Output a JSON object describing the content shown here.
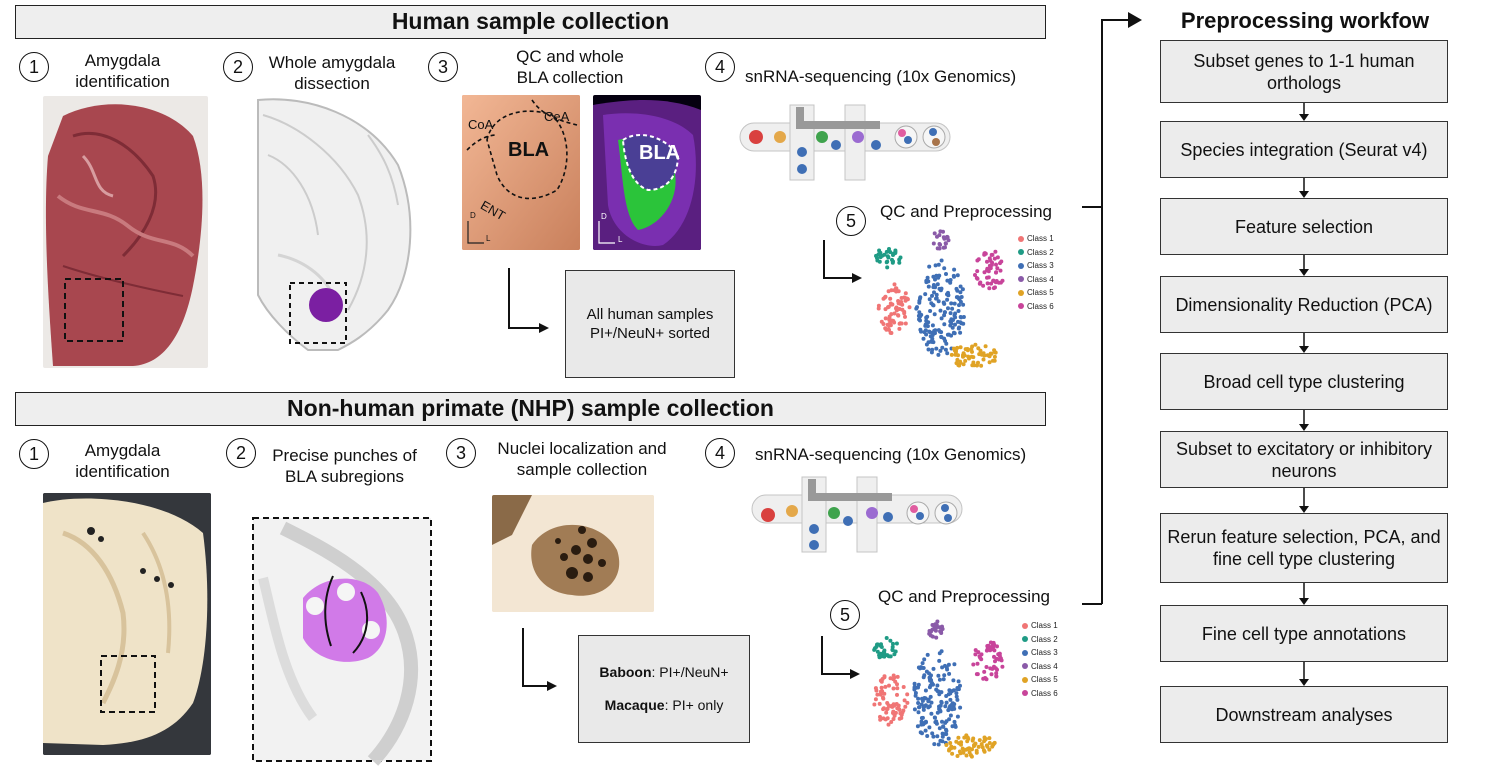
{
  "human": {
    "title": "Human sample collection",
    "steps": [
      {
        "num": "1",
        "label": "Amygdala identification"
      },
      {
        "num": "2",
        "label": "Whole amygdala dissection"
      },
      {
        "num": "3",
        "label": "QC and whole BLA collection"
      },
      {
        "num": "4",
        "label": "snRNA-sequencing (10x Genomics)"
      },
      {
        "num": "5",
        "label": "QC and Preprocessing"
      }
    ],
    "slice_labels": {
      "coa": "CoA",
      "cea": "CeA",
      "bla": "BLA",
      "ent": "ENT",
      "d": "D",
      "l": "L"
    },
    "fluor_labels": {
      "bla": "BLA",
      "d": "D",
      "l": "L"
    },
    "sort_box": [
      "All human samples",
      "PI+/NeuN+ sorted"
    ]
  },
  "nhp": {
    "title": "Non-human primate (NHP) sample collection",
    "steps": [
      {
        "num": "1",
        "label": "Amygdala identification"
      },
      {
        "num": "2",
        "label": "Precise punches of BLA subregions"
      },
      {
        "num": "3",
        "label": "Nuclei localization and sample collection"
      },
      {
        "num": "4",
        "label": "snRNA-sequencing (10x Genomics)"
      },
      {
        "num": "5",
        "label": "QC and Preprocessing"
      }
    ],
    "sort_box": {
      "baboon_name": "Baboon",
      "baboon_rest": ": PI+/NeuN+",
      "macaque_name": "Macaque",
      "macaque_rest": ": PI+ only"
    }
  },
  "legend": {
    "classes": [
      "Class 1",
      "Class 2",
      "Class 3",
      "Class 4",
      "Class 5",
      "Class 6"
    ],
    "colors": [
      "#f07575",
      "#1f9b85",
      "#3f6fb5",
      "#8a5aa8",
      "#e0a325",
      "#c8449a"
    ]
  },
  "workflow": {
    "title": "Preprocessing workfow",
    "steps": [
      "Subset genes to 1-1 human orthologs",
      "Species integration (Seurat v4)",
      "Feature selection",
      "Dimensionality Reduction (PCA)",
      "Broad cell type clustering",
      "Subset to excitatory or inhibitory neurons",
      "Rerun feature selection, PCA, and fine cell type clustering",
      "Fine cell type annotations",
      "Downstream analyses"
    ]
  }
}
